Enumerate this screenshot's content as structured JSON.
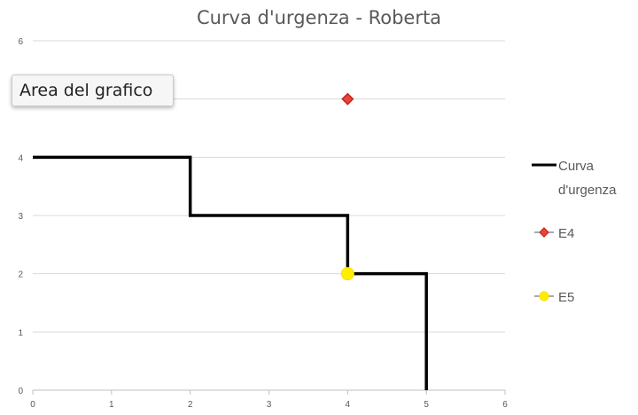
{
  "chart_data": {
    "type": "line",
    "title": "Curva d'urgenza - Roberta",
    "xlim": [
      0,
      6
    ],
    "ylim": [
      0,
      6
    ],
    "x_ticks": [
      "0",
      "1",
      "2",
      "3",
      "4",
      "5",
      "6"
    ],
    "y_ticks": [
      "0",
      "1",
      "2",
      "3",
      "4",
      "5",
      "6"
    ],
    "grid": "horizontal",
    "legend_position": "right",
    "series": [
      {
        "name": "Curva d'urgenza",
        "kind": "step-line",
        "color": "#000000",
        "x": [
          0,
          2,
          2,
          4,
          4,
          5,
          5
        ],
        "y": [
          4,
          4,
          3,
          3,
          2,
          2,
          0
        ]
      },
      {
        "name": "E4",
        "kind": "marker",
        "marker": "diamond",
        "color": "#e8443a",
        "x": [
          4
        ],
        "y": [
          5
        ]
      },
      {
        "name": "E5",
        "kind": "marker",
        "marker": "circle",
        "color": "#ffee00",
        "x": [
          4
        ],
        "y": [
          2
        ]
      }
    ]
  },
  "tooltip": {
    "text": "Area del grafico"
  },
  "legend": {
    "items": [
      {
        "lines": [
          "Curva",
          "d'urgenza"
        ]
      },
      {
        "lines": [
          "E4"
        ]
      },
      {
        "lines": [
          "E5"
        ]
      }
    ]
  }
}
